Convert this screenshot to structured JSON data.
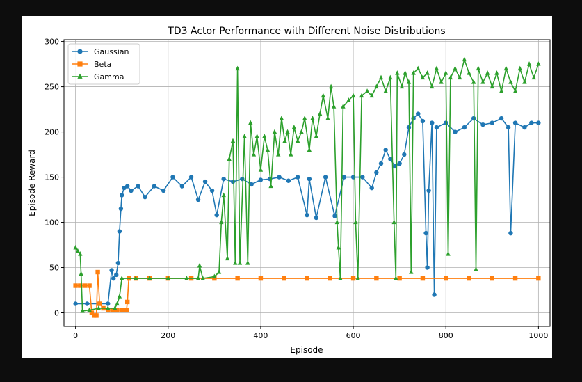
{
  "chart_data": {
    "type": "line",
    "title": "TD3 Actor Performance with Different Noise Distributions",
    "xlabel": "Episode",
    "ylabel": "Episode Reward",
    "xlim": [
      -25,
      1025
    ],
    "ylim": [
      -15,
      302
    ],
    "xticks": [
      0,
      200,
      400,
      600,
      800,
      1000
    ],
    "yticks": [
      0,
      50,
      100,
      150,
      200,
      250,
      300
    ],
    "grid": true,
    "legend_position": "top-left",
    "series": [
      {
        "name": "Gaussian",
        "color": "#1f77b4",
        "marker": "circle",
        "points": [
          [
            0,
            10
          ],
          [
            25,
            10
          ],
          [
            50,
            10
          ],
          [
            70,
            10
          ],
          [
            78,
            47
          ],
          [
            82,
            38
          ],
          [
            88,
            42
          ],
          [
            92,
            55
          ],
          [
            95,
            90
          ],
          [
            98,
            115
          ],
          [
            100,
            130
          ],
          [
            105,
            138
          ],
          [
            112,
            140
          ],
          [
            120,
            135
          ],
          [
            135,
            140
          ],
          [
            150,
            128
          ],
          [
            170,
            140
          ],
          [
            190,
            135
          ],
          [
            210,
            150
          ],
          [
            230,
            140
          ],
          [
            250,
            150
          ],
          [
            265,
            125
          ],
          [
            280,
            145
          ],
          [
            295,
            135
          ],
          [
            305,
            108
          ],
          [
            320,
            148
          ],
          [
            340,
            145
          ],
          [
            360,
            148
          ],
          [
            380,
            142
          ],
          [
            400,
            147
          ],
          [
            420,
            148
          ],
          [
            440,
            150
          ],
          [
            460,
            146
          ],
          [
            480,
            150
          ],
          [
            500,
            108
          ],
          [
            505,
            148
          ],
          [
            520,
            105
          ],
          [
            540,
            150
          ],
          [
            560,
            107
          ],
          [
            580,
            150
          ],
          [
            600,
            150
          ],
          [
            620,
            150
          ],
          [
            640,
            138
          ],
          [
            650,
            155
          ],
          [
            660,
            165
          ],
          [
            670,
            180
          ],
          [
            680,
            170
          ],
          [
            690,
            162
          ],
          [
            700,
            165
          ],
          [
            710,
            175
          ],
          [
            720,
            205
          ],
          [
            730,
            215
          ],
          [
            740,
            220
          ],
          [
            750,
            212
          ],
          [
            757,
            88
          ],
          [
            760,
            50
          ],
          [
            763,
            135
          ],
          [
            770,
            210
          ],
          [
            775,
            20
          ],
          [
            780,
            205
          ],
          [
            800,
            210
          ],
          [
            820,
            200
          ],
          [
            840,
            205
          ],
          [
            860,
            215
          ],
          [
            880,
            208
          ],
          [
            900,
            210
          ],
          [
            920,
            215
          ],
          [
            935,
            205
          ],
          [
            940,
            88
          ],
          [
            950,
            210
          ],
          [
            970,
            205
          ],
          [
            985,
            210
          ],
          [
            1000,
            210
          ]
        ]
      },
      {
        "name": "Beta",
        "color": "#ff7f0e",
        "marker": "square",
        "points": [
          [
            0,
            30
          ],
          [
            10,
            30
          ],
          [
            20,
            30
          ],
          [
            30,
            30
          ],
          [
            35,
            0
          ],
          [
            40,
            -3
          ],
          [
            45,
            -3
          ],
          [
            48,
            45
          ],
          [
            52,
            10
          ],
          [
            60,
            5
          ],
          [
            70,
            3
          ],
          [
            80,
            3
          ],
          [
            90,
            3
          ],
          [
            100,
            3
          ],
          [
            110,
            3
          ],
          [
            112,
            12
          ],
          [
            115,
            38
          ],
          [
            130,
            38
          ],
          [
            160,
            38
          ],
          [
            200,
            38
          ],
          [
            250,
            38
          ],
          [
            300,
            38
          ],
          [
            350,
            38
          ],
          [
            400,
            38
          ],
          [
            450,
            38
          ],
          [
            500,
            38
          ],
          [
            550,
            38
          ],
          [
            600,
            38
          ],
          [
            650,
            38
          ],
          [
            700,
            38
          ],
          [
            750,
            38
          ],
          [
            800,
            38
          ],
          [
            850,
            38
          ],
          [
            900,
            38
          ],
          [
            950,
            38
          ],
          [
            1000,
            38
          ]
        ]
      },
      {
        "name": "Gamma",
        "color": "#2ca02c",
        "marker": "triangle",
        "points": [
          [
            0,
            72
          ],
          [
            5,
            68
          ],
          [
            10,
            65
          ],
          [
            12,
            43
          ],
          [
            15,
            2
          ],
          [
            30,
            3
          ],
          [
            50,
            5
          ],
          [
            70,
            5
          ],
          [
            85,
            5
          ],
          [
            90,
            10
          ],
          [
            95,
            18
          ],
          [
            100,
            38
          ],
          [
            130,
            38
          ],
          [
            160,
            38
          ],
          [
            200,
            38
          ],
          [
            240,
            38
          ],
          [
            265,
            38
          ],
          [
            268,
            52
          ],
          [
            275,
            38
          ],
          [
            300,
            40
          ],
          [
            310,
            45
          ],
          [
            315,
            100
          ],
          [
            320,
            130
          ],
          [
            328,
            60
          ],
          [
            332,
            170
          ],
          [
            340,
            190
          ],
          [
            345,
            55
          ],
          [
            350,
            270
          ],
          [
            355,
            55
          ],
          [
            365,
            195
          ],
          [
            372,
            55
          ],
          [
            378,
            210
          ],
          [
            385,
            175
          ],
          [
            392,
            195
          ],
          [
            400,
            158
          ],
          [
            408,
            195
          ],
          [
            415,
            180
          ],
          [
            422,
            140
          ],
          [
            430,
            200
          ],
          [
            438,
            175
          ],
          [
            445,
            215
          ],
          [
            452,
            190
          ],
          [
            458,
            200
          ],
          [
            465,
            175
          ],
          [
            472,
            205
          ],
          [
            480,
            190
          ],
          [
            488,
            200
          ],
          [
            495,
            215
          ],
          [
            505,
            180
          ],
          [
            512,
            215
          ],
          [
            520,
            195
          ],
          [
            528,
            220
          ],
          [
            535,
            240
          ],
          [
            545,
            215
          ],
          [
            552,
            250
          ],
          [
            558,
            228
          ],
          [
            565,
            100
          ],
          [
            568,
            72
          ],
          [
            572,
            38
          ],
          [
            578,
            228
          ],
          [
            590,
            235
          ],
          [
            600,
            240
          ],
          [
            605,
            100
          ],
          [
            610,
            38
          ],
          [
            618,
            240
          ],
          [
            630,
            245
          ],
          [
            640,
            240
          ],
          [
            650,
            250
          ],
          [
            660,
            260
          ],
          [
            670,
            245
          ],
          [
            680,
            260
          ],
          [
            688,
            100
          ],
          [
            692,
            38
          ],
          [
            695,
            265
          ],
          [
            705,
            250
          ],
          [
            712,
            265
          ],
          [
            720,
            255
          ],
          [
            725,
            45
          ],
          [
            730,
            265
          ],
          [
            740,
            270
          ],
          [
            750,
            260
          ],
          [
            760,
            265
          ],
          [
            770,
            250
          ],
          [
            780,
            270
          ],
          [
            790,
            255
          ],
          [
            800,
            265
          ],
          [
            805,
            65
          ],
          [
            810,
            260
          ],
          [
            820,
            270
          ],
          [
            830,
            260
          ],
          [
            840,
            280
          ],
          [
            850,
            265
          ],
          [
            860,
            255
          ],
          [
            865,
            48
          ],
          [
            870,
            270
          ],
          [
            880,
            255
          ],
          [
            890,
            265
          ],
          [
            900,
            250
          ],
          [
            910,
            265
          ],
          [
            920,
            245
          ],
          [
            930,
            270
          ],
          [
            940,
            255
          ],
          [
            950,
            245
          ],
          [
            960,
            270
          ],
          [
            970,
            255
          ],
          [
            980,
            275
          ],
          [
            990,
            260
          ],
          [
            1000,
            275
          ]
        ]
      }
    ]
  }
}
